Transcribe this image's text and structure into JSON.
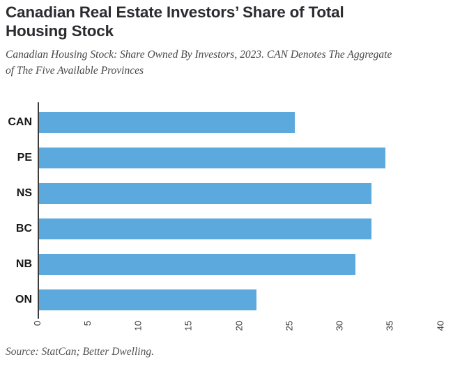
{
  "header": {
    "title_line1": "Canadian Real Estate Investors’ Share of Total",
    "title_line2": "Housing Stock",
    "subtitle_line1": "Canadian Housing Stock: Share Owned By Investors, 2023. CAN Denotes The Aggregate",
    "subtitle_line2": "of The Five Available Provinces"
  },
  "footer": {
    "source": "Source: StatCan; Better Dwelling."
  },
  "colors": {
    "bar": "#5ba9dd",
    "title": "#2b2b30",
    "subtitle": "#46464a",
    "axis": "#3c3c3c",
    "tick_label": "#3a3a3a",
    "category_label": "#17171a"
  },
  "chart_data": {
    "type": "bar",
    "orientation": "horizontal",
    "title": "Canadian Real Estate Investors’ Share of Total Housing Stock",
    "subtitle": "Canadian Housing Stock: Share Owned By Investors, 2023. CAN Denotes The Aggregate of The Five Available Provinces",
    "categories": [
      "CAN",
      "PE",
      "NS",
      "BC",
      "NB",
      "ON"
    ],
    "values": [
      25.5,
      34.5,
      33.1,
      33.1,
      31.5,
      21.7
    ],
    "xlabel": "",
    "ylabel": "",
    "xlim": [
      0,
      40
    ],
    "xticks": [
      0,
      5,
      10,
      15,
      20,
      25,
      30,
      35,
      40
    ],
    "grid": false,
    "legend": "none",
    "bar_color": "#5ba9dd",
    "source": "Source: StatCan; Better Dwelling."
  }
}
